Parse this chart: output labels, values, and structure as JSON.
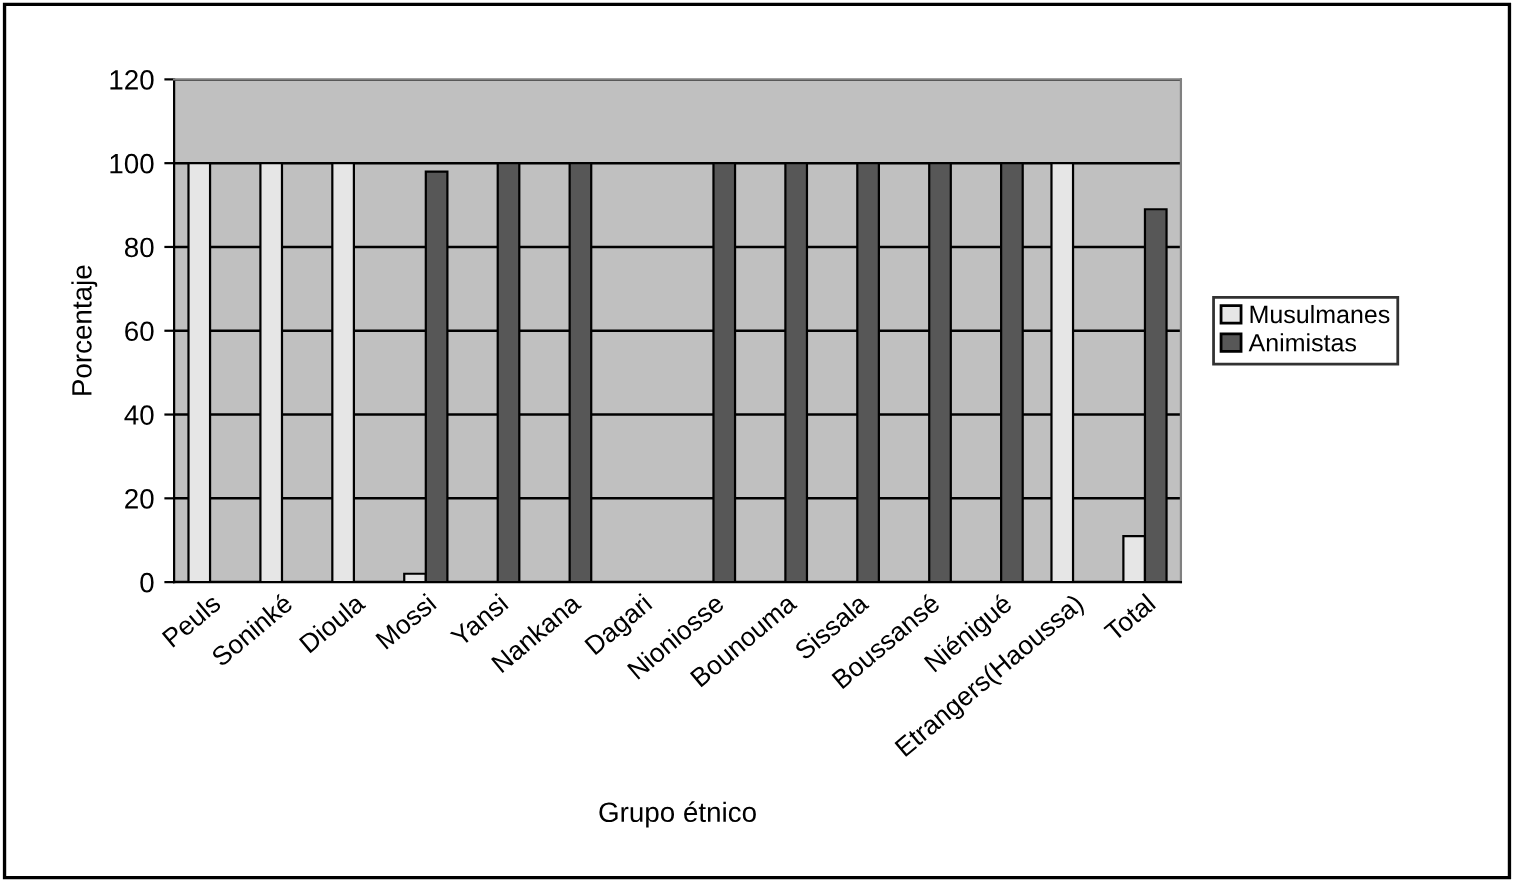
{
  "chart_data": {
    "type": "bar",
    "xlabel": "Grupo étnico",
    "ylabel": "Porcentaje",
    "categories": [
      "Peuls",
      "Soninké",
      "Dioula",
      "Mossi",
      "Yansi",
      "Nankana",
      "Dagari",
      "Nioniosse",
      "Bounouma",
      "Sissala",
      "Boussansé",
      "Niénigué",
      "Etrangers(Haoussa)",
      "Total"
    ],
    "series": [
      {
        "name": "Musulmanes",
        "color": "#e6e6e6",
        "values": [
          100,
          100,
          100,
          2,
          0,
          0,
          0,
          0,
          0,
          0,
          0,
          0,
          100,
          11
        ]
      },
      {
        "name": "Animistas",
        "color": "#575757",
        "values": [
          0,
          0,
          0,
          98,
          100,
          100,
          0,
          100,
          100,
          100,
          100,
          100,
          0,
          89
        ]
      }
    ],
    "ylim": [
      0,
      120
    ],
    "yticks": [
      0,
      20,
      40,
      60,
      80,
      100,
      120
    ],
    "grid": "y",
    "legend": "right"
  }
}
